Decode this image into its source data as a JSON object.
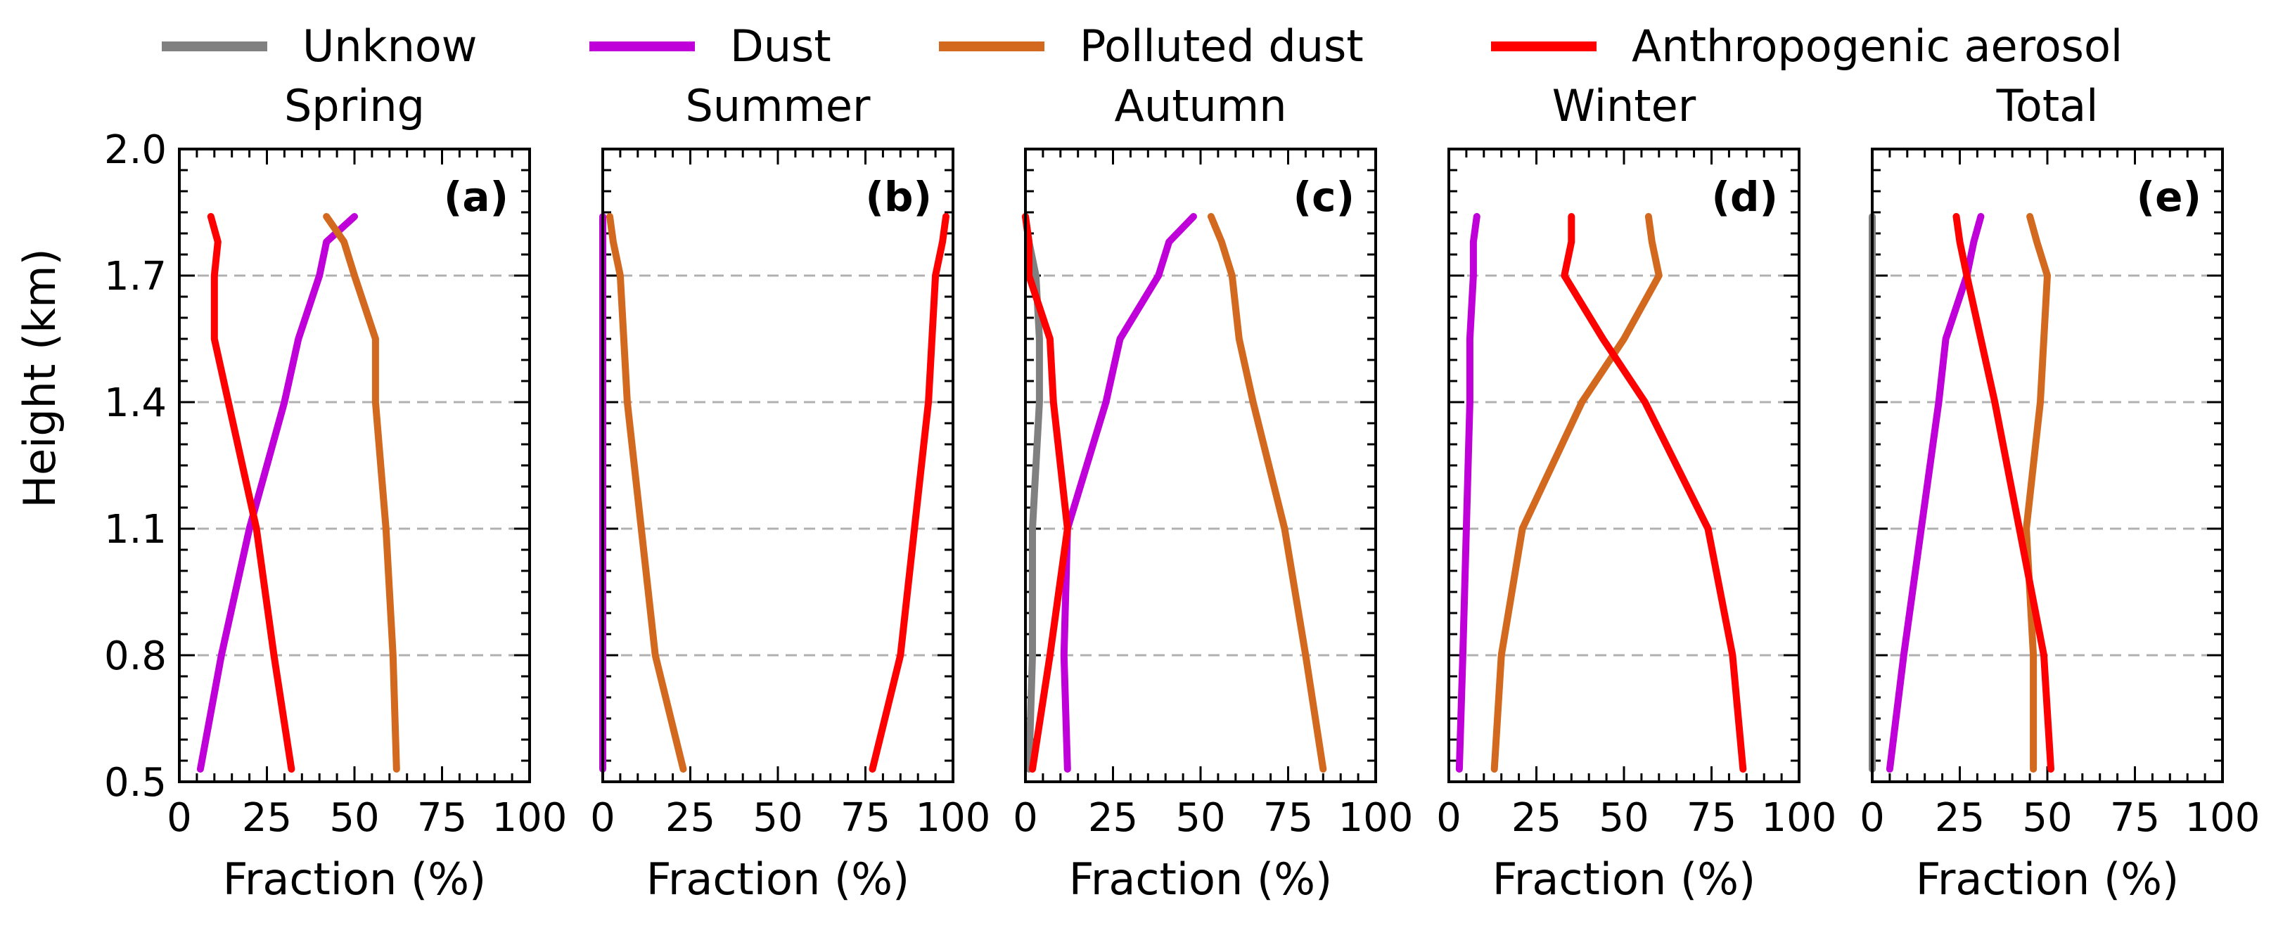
{
  "legend": [
    {
      "name": "Unknow",
      "color": "#808080"
    },
    {
      "name": "Dust",
      "color": "#bf00d9"
    },
    {
      "name": "Polluted dust",
      "color": "#d2691e"
    },
    {
      "name": "Anthropogenic aerosol",
      "color": "#ff0000"
    }
  ],
  "shared_axes": {
    "ylabel": "Height (km)",
    "xlabel": "Fraction (%)",
    "ylim": [
      0.5,
      2.0
    ],
    "xlim": [
      0,
      100
    ],
    "yticks": [
      "0.5",
      "0.8",
      "1.1",
      "1.4",
      "1.7",
      "2.0"
    ],
    "xticks": [
      "0",
      "25",
      "50",
      "75",
      "100"
    ],
    "grid_y_dashed": [
      0.8,
      1.1,
      1.4,
      1.7
    ]
  },
  "chart_data": [
    {
      "type": "line",
      "title": "Spring",
      "tag": "(a)",
      "y": [
        0.53,
        0.8,
        1.1,
        1.4,
        1.55,
        1.7,
        1.78,
        1.84
      ],
      "series": [
        {
          "name": "Dust",
          "x": [
            6,
            12,
            20,
            30,
            34,
            40,
            42,
            50
          ]
        },
        {
          "name": "Polluted dust",
          "x": [
            62,
            61,
            59,
            56,
            56,
            50,
            47,
            42
          ]
        },
        {
          "name": "Anthropogenic aerosol",
          "x": [
            32,
            27,
            22,
            14,
            10,
            10,
            11,
            9
          ]
        }
      ]
    },
    {
      "type": "line",
      "title": "Summer",
      "tag": "(b)",
      "y": [
        0.53,
        0.8,
        1.1,
        1.4,
        1.55,
        1.7,
        1.78,
        1.84
      ],
      "series": [
        {
          "name": "Dust",
          "x": [
            0,
            0,
            0,
            0,
            0,
            0,
            0,
            0
          ]
        },
        {
          "name": "Polluted dust",
          "x": [
            23,
            15,
            11,
            7,
            6,
            5,
            3,
            2
          ]
        },
        {
          "name": "Anthropogenic aerosol",
          "x": [
            77,
            85,
            89,
            93,
            94,
            95,
            97,
            98
          ]
        }
      ]
    },
    {
      "type": "line",
      "title": "Autumn",
      "tag": "(c)",
      "y": [
        0.53,
        0.8,
        1.1,
        1.4,
        1.55,
        1.7,
        1.78,
        1.84
      ],
      "series": [
        {
          "name": "Unknow",
          "x": [
            1,
            2,
            2,
            4,
            4,
            3,
            1,
            0
          ]
        },
        {
          "name": "Dust",
          "x": [
            12,
            11,
            12,
            23,
            27,
            38,
            41,
            48
          ]
        },
        {
          "name": "Polluted dust",
          "x": [
            85,
            80,
            74,
            65,
            61,
            59,
            56,
            53
          ]
        },
        {
          "name": "Anthropogenic aerosol",
          "x": [
            2,
            7,
            12,
            8,
            7,
            1,
            1,
            0
          ]
        }
      ]
    },
    {
      "type": "line",
      "title": "Winter",
      "tag": "(d)",
      "y": [
        0.53,
        0.8,
        1.1,
        1.4,
        1.55,
        1.7,
        1.78,
        1.84
      ],
      "series": [
        {
          "name": "Dust",
          "x": [
            3,
            4,
            5,
            6,
            6,
            7,
            7,
            8
          ]
        },
        {
          "name": "Polluted dust",
          "x": [
            13,
            15,
            21,
            38,
            50,
            60,
            58,
            57
          ]
        },
        {
          "name": "Anthropogenic aerosol",
          "x": [
            84,
            81,
            74,
            56,
            44,
            33,
            35,
            35
          ]
        }
      ]
    },
    {
      "type": "line",
      "title": "Total",
      "tag": "(e)",
      "y": [
        0.53,
        0.8,
        1.1,
        1.4,
        1.55,
        1.7,
        1.78,
        1.84
      ],
      "series": [
        {
          "name": "Unknow",
          "x": [
            0,
            0,
            0,
            0,
            0,
            0,
            0,
            0
          ]
        },
        {
          "name": "Dust",
          "x": [
            5,
            9,
            14,
            19,
            21,
            27,
            29,
            31
          ]
        },
        {
          "name": "Polluted dust",
          "x": [
            46,
            46,
            44,
            48,
            49,
            50,
            47,
            45
          ]
        },
        {
          "name": "Anthropogenic aerosol",
          "x": [
            51,
            49,
            42,
            35,
            31,
            27,
            25,
            24
          ]
        }
      ]
    }
  ]
}
